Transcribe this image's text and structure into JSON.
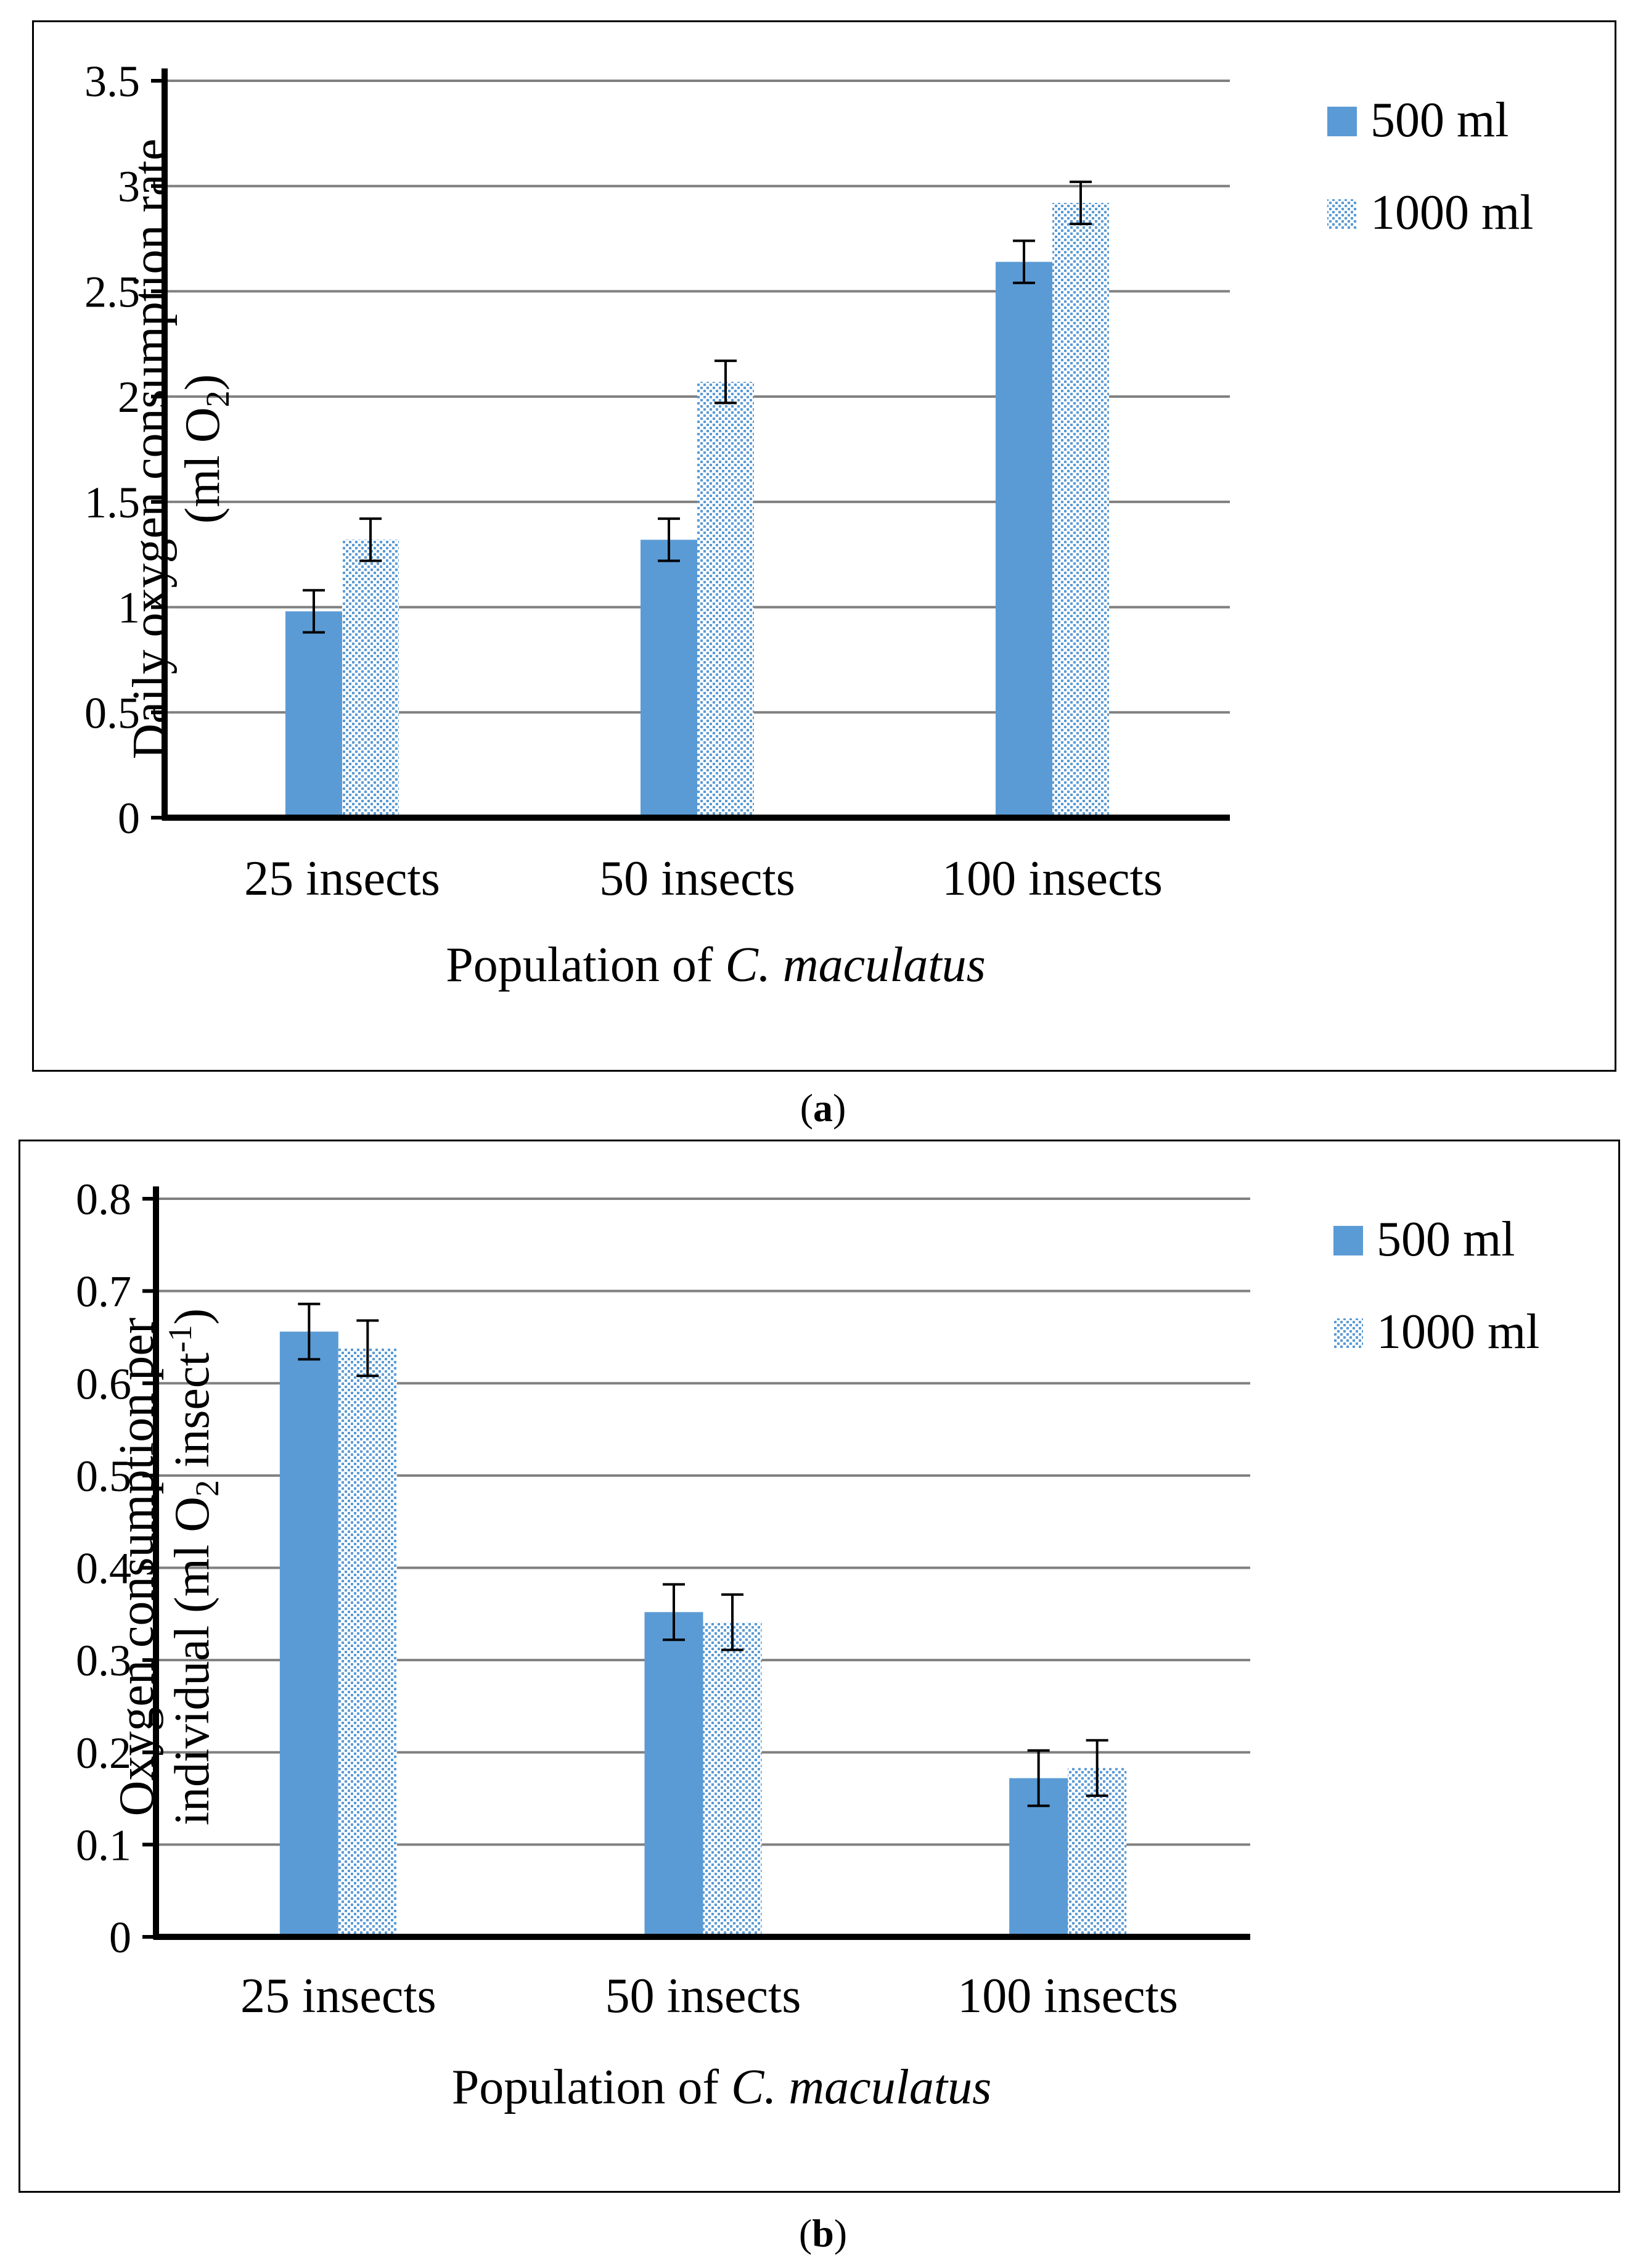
{
  "colors": {
    "series_500": "#5b9bd5",
    "series_1000": "#5b9bd5",
    "gridline": "#808080",
    "axis": "#000000"
  },
  "chart_data": [
    {
      "id": "a",
      "type": "bar",
      "caption": "a",
      "categories": [
        "25 insects",
        "50 insects",
        "100 insects"
      ],
      "series": [
        {
          "name": "500 ml",
          "pattern": "solid",
          "values": [
            0.98,
            1.32,
            2.64
          ],
          "errors": [
            0.1,
            0.1,
            0.1
          ]
        },
        {
          "name": "1000 ml",
          "pattern": "dotted",
          "values": [
            1.32,
            2.07,
            2.92
          ],
          "errors": [
            0.1,
            0.1,
            0.1
          ]
        }
      ],
      "xlabel_prefix": "Population of ",
      "xlabel_species": "C. maculatus",
      "ylabel_line1": "Daily oxygen consumption rate",
      "ylabel_line2_a": "(ml O",
      "ylabel_line2_sub": "2",
      "ylabel_line2_b": ")",
      "ylim": [
        0,
        3.5
      ],
      "yticks": [
        0,
        0.5,
        1,
        1.5,
        2,
        2.5,
        3,
        3.5
      ],
      "ytick_labels": [
        "0",
        "0.5",
        "1",
        "1.5",
        "2",
        "2.5",
        "3",
        "3.5"
      ],
      "legend": "right"
    },
    {
      "id": "b",
      "type": "bar",
      "caption": "b",
      "categories": [
        "25 insects",
        "50 insects",
        "100 insects"
      ],
      "series": [
        {
          "name": "500 ml",
          "pattern": "solid",
          "values": [
            0.656,
            0.352,
            0.172
          ],
          "errors": [
            0.03,
            0.03,
            0.03
          ]
        },
        {
          "name": "1000 ml",
          "pattern": "dotted",
          "values": [
            0.638,
            0.341,
            0.183
          ],
          "errors": [
            0.03,
            0.03,
            0.03
          ]
        }
      ],
      "xlabel_prefix": "Population of ",
      "xlabel_species": "C. maculatus",
      "ylabel_line1": "Oxygen consumption per",
      "ylabel_line2_a": "individual (ml O",
      "ylabel_line2_sub": "2",
      "ylabel_line2_b": " insect",
      "ylabel_line2_sup": "-1",
      "ylabel_line2_c": ")",
      "ylim": [
        0,
        0.8
      ],
      "yticks": [
        0,
        0.1,
        0.2,
        0.3,
        0.4,
        0.5,
        0.6,
        0.7,
        0.8
      ],
      "ytick_labels": [
        "0",
        "0.1",
        "0.2",
        "0.3",
        "0.4",
        "0.5",
        "0.6",
        "0.7",
        "0.8"
      ],
      "legend": "right"
    }
  ]
}
